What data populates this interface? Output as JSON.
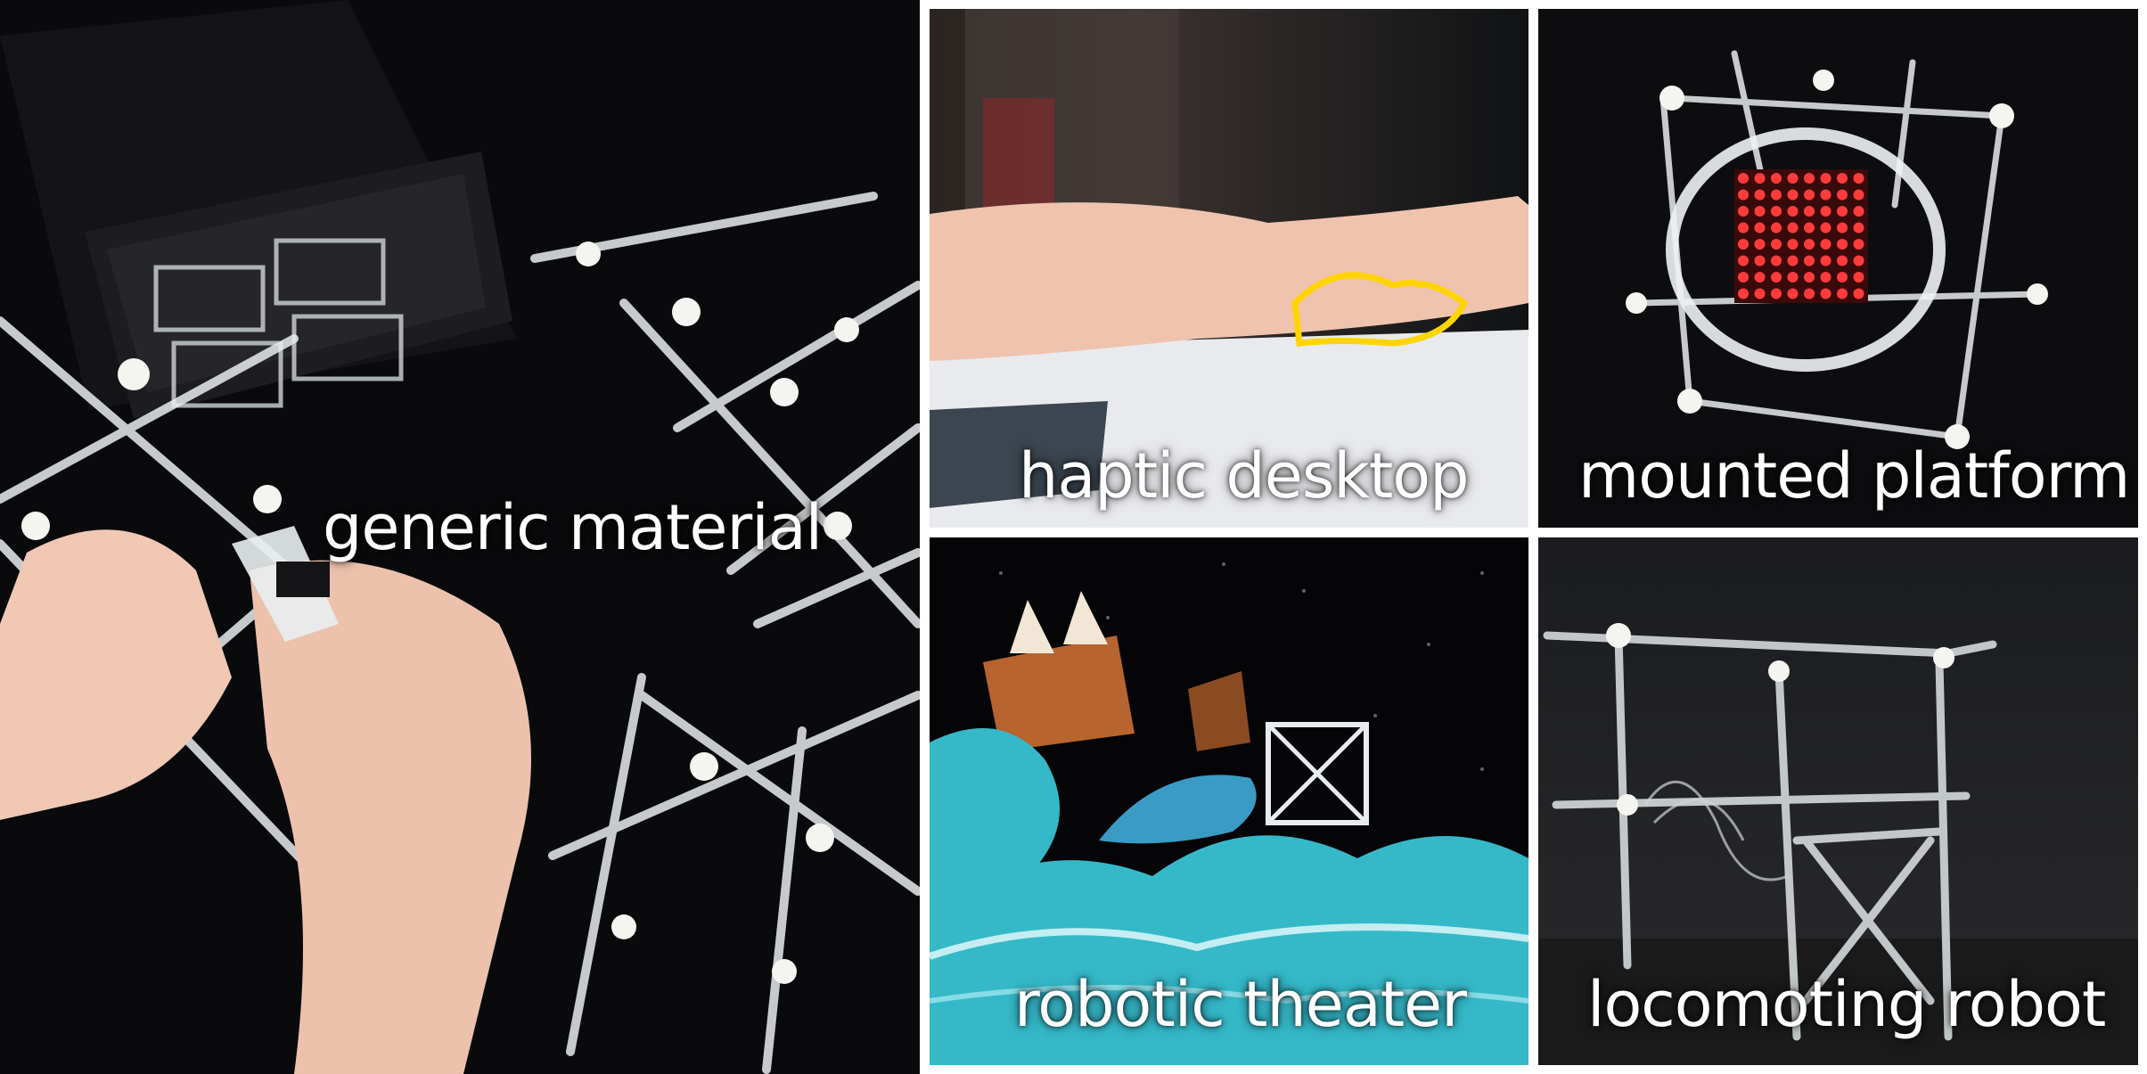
{
  "panels": {
    "main": {
      "caption": "generic material"
    },
    "haptic": {
      "caption": "haptic desktop"
    },
    "mounted": {
      "caption": "mounted platform"
    },
    "theater": {
      "caption": "robotic theater"
    },
    "robot": {
      "caption": "locomoting robot"
    }
  },
  "colors": {
    "background": "#0b0b0d",
    "lattice": "#e8ecee",
    "led": "#ff3b3b",
    "highlight": "#ffd400",
    "wave": "#35b9c9",
    "skin": "#f0c8b4"
  }
}
